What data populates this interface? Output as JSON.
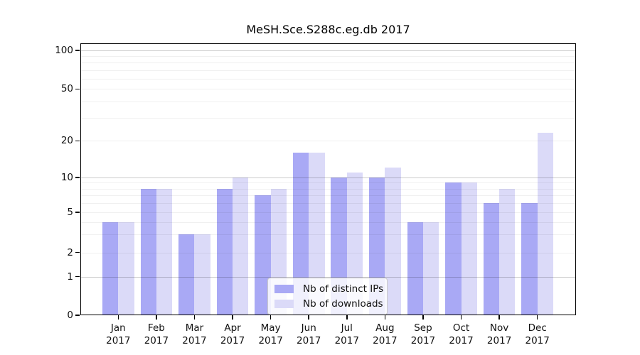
{
  "window": {
    "background": "#ffffff"
  },
  "chart_data": {
    "type": "bar",
    "title": "MeSH.Sce.S288c.eg.db 2017",
    "categories": [
      "Jan 2017",
      "Feb 2017",
      "Mar 2017",
      "Apr 2017",
      "May 2017",
      "Jun 2017",
      "Jul 2017",
      "Aug 2017",
      "Sep 2017",
      "Oct 2017",
      "Nov 2017",
      "Dec 2017"
    ],
    "x_labels": [
      {
        "line1": "Jan",
        "line2": "2017"
      },
      {
        "line1": "Feb",
        "line2": "2017"
      },
      {
        "line1": "Mar",
        "line2": "2017"
      },
      {
        "line1": "Apr",
        "line2": "2017"
      },
      {
        "line1": "May",
        "line2": "2017"
      },
      {
        "line1": "Jun",
        "line2": "2017"
      },
      {
        "line1": "Jul",
        "line2": "2017"
      },
      {
        "line1": "Aug",
        "line2": "2017"
      },
      {
        "line1": "Sep",
        "line2": "2017"
      },
      {
        "line1": "Oct",
        "line2": "2017"
      },
      {
        "line1": "Nov",
        "line2": "2017"
      },
      {
        "line1": "Dec",
        "line2": "2017"
      }
    ],
    "series": [
      {
        "name": "Nb of distinct IPs",
        "color": "#a9a9f5",
        "values": [
          4,
          8,
          3,
          8,
          7,
          16,
          10,
          10,
          4,
          9,
          6,
          6
        ]
      },
      {
        "name": "Nb of downloads",
        "color": "#dbdaf8",
        "values": [
          4,
          8,
          3,
          10,
          8,
          16,
          11,
          12,
          4,
          9,
          8,
          23
        ]
      }
    ],
    "y_axis": {
      "scale": "pseudo-log",
      "ticks": [
        0,
        1,
        2,
        5,
        10,
        20,
        50,
        100
      ],
      "tick_labels": [
        "0",
        "1",
        "2",
        "5",
        "10",
        "20",
        "50",
        "100"
      ],
      "major_gridlines": [
        1,
        10,
        100
      ],
      "minor_gridlines": [
        2,
        3,
        4,
        5,
        6,
        7,
        8,
        9,
        20,
        30,
        40,
        50,
        60,
        70,
        80,
        90
      ],
      "range": [
        0,
        107
      ]
    },
    "legend": {
      "position": "bottom-center"
    },
    "grid": true
  }
}
